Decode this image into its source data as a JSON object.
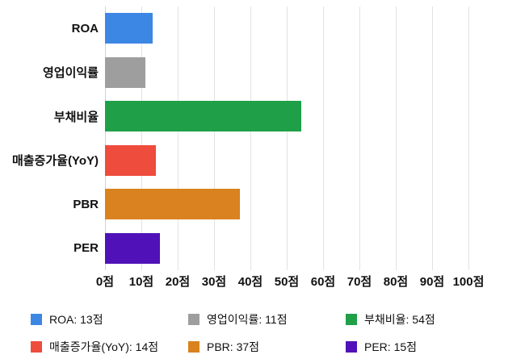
{
  "chart_data": {
    "type": "bar",
    "orientation": "horizontal",
    "title": "",
    "categories": [
      "ROA",
      "영업이익률",
      "부채비율",
      "매출증가율(YoY)",
      "PBR",
      "PER"
    ],
    "values": [
      13,
      11,
      54,
      14,
      37,
      15
    ],
    "unit": "점",
    "colors": [
      "#3d87e4",
      "#9e9e9e",
      "#1fa048",
      "#ee4c3c",
      "#d9821f",
      "#5012b8"
    ],
    "xlim": [
      0,
      100
    ],
    "x_ticks": [
      0,
      10,
      20,
      30,
      40,
      50,
      60,
      70,
      80,
      90,
      100
    ],
    "x_tick_labels": [
      "0점",
      "10점",
      "20점",
      "30점",
      "40점",
      "50점",
      "60점",
      "70점",
      "80점",
      "90점",
      "100점"
    ],
    "grid": true,
    "legend_position": "bottom",
    "legend": [
      "ROA: 13점",
      "영업이익률: 11점",
      "부채비율: 54점",
      "매출증가율(YoY): 14점",
      "PBR: 37점",
      "PER: 15점"
    ]
  }
}
